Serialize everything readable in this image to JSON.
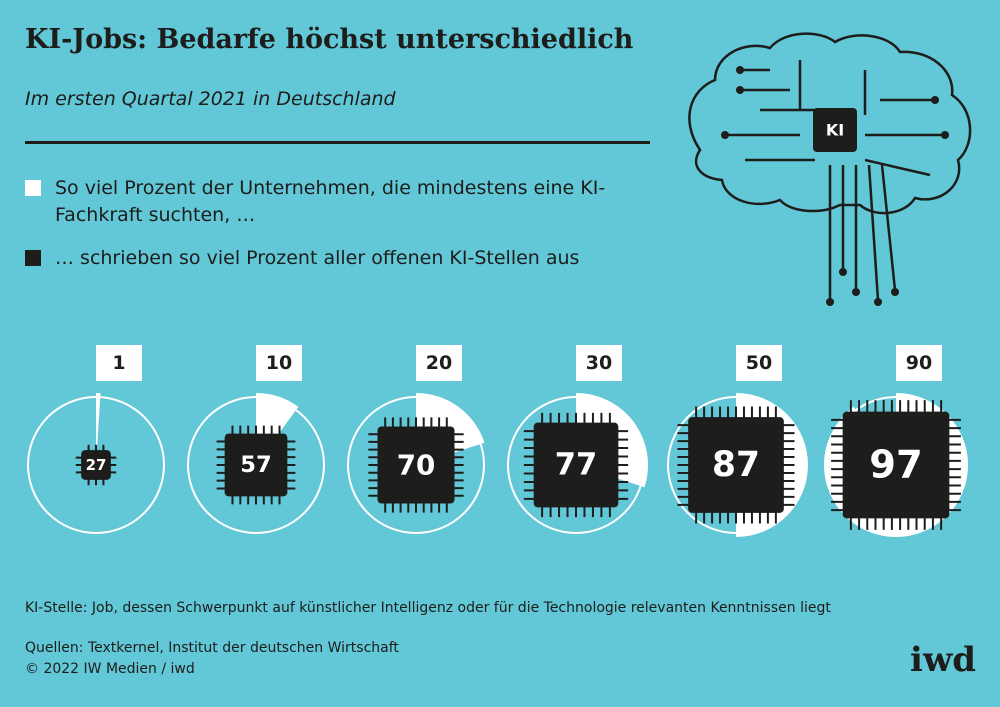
{
  "chart_data": {
    "type": "pie",
    "title": "KI-Jobs: Bedarfe höchst unterschiedlich",
    "subtitle": "Im ersten Quartal 2021 in Deutschland",
    "series": [
      {
        "name": "So viel Prozent der Unternehmen, die mindestens eine KI-Fachkraft suchten, …",
        "color": "#ffffff",
        "values": [
          1,
          10,
          20,
          30,
          50,
          90
        ]
      },
      {
        "name": "… schrieben so viel Prozent aller offenen KI-Stellen aus",
        "color": "#1d1d1b",
        "values": [
          27,
          57,
          70,
          77,
          87,
          97
        ]
      }
    ]
  },
  "illustration": {
    "label": "KI"
  },
  "footnote": "KI-Stelle: Job, dessen Schwerpunkt auf künstlicher Intelligenz oder für die Technologie relevanten Kenntnissen liegt",
  "sources": "Quellen: Textkernel, Institut der deutschen Wirtschaft",
  "copyright": "© 2022 IW Medien / iwd",
  "logo": "iwd"
}
